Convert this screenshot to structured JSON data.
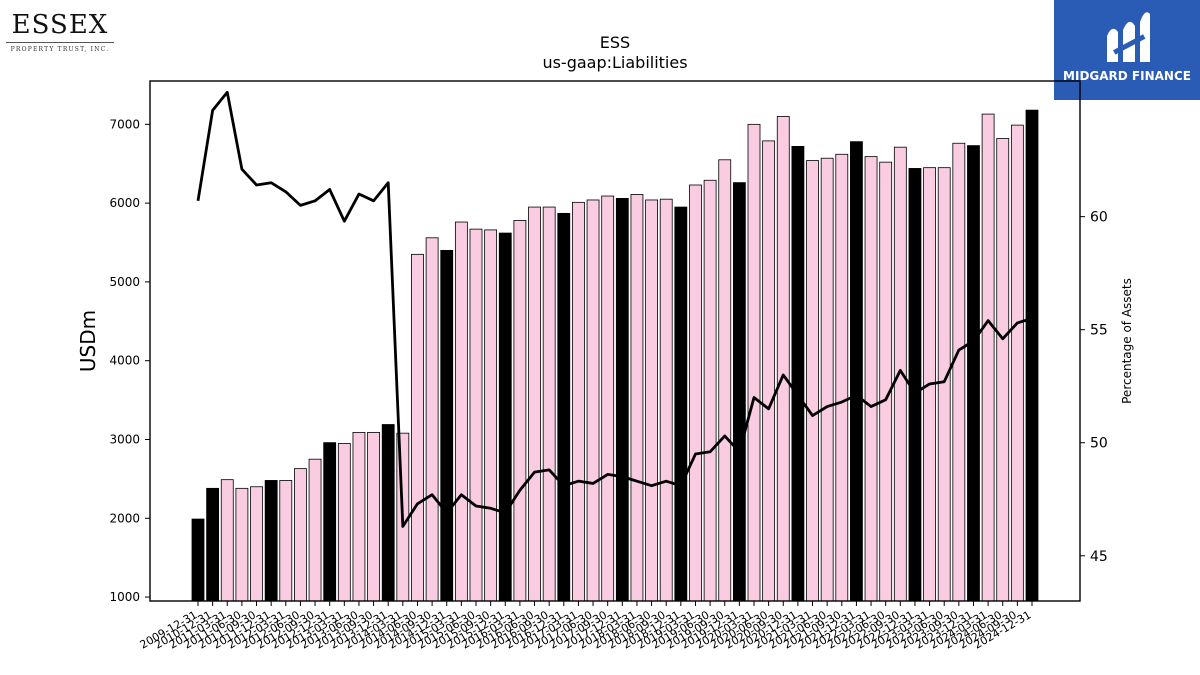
{
  "logos": {
    "essex": {
      "name": "ESSEX",
      "subtitle": "PROPERTY TRUST, INC."
    },
    "midgard": {
      "name": "MIDGARD FINANCE",
      "color": "#2a5bb5"
    }
  },
  "chart_data": {
    "type": "bar",
    "title": "ESS",
    "subtitle": "us-gaap:Liabilities",
    "ylabel": "USDm",
    "y2label": "Percentage of Assets",
    "ylim": [
      950,
      7550
    ],
    "y2lim": [
      43,
      66
    ],
    "yticks": [
      1000,
      2000,
      3000,
      4000,
      5000,
      6000,
      7000
    ],
    "y2ticks": [
      45,
      50,
      55,
      60
    ],
    "categories": [
      "2009-12-31",
      "2010-12-31",
      "2011-03-31",
      "2011-06-30",
      "2011-09-30",
      "2011-12-31",
      "2012-03-31",
      "2012-06-30",
      "2012-09-30",
      "2012-12-31",
      "2013-03-31",
      "2013-06-30",
      "2013-09-30",
      "2013-12-31",
      "2014-03-31",
      "2014-06-30",
      "2014-09-30",
      "2014-12-31",
      "2015-03-31",
      "2015-06-30",
      "2015-09-30",
      "2015-12-31",
      "2016-03-31",
      "2016-06-30",
      "2016-09-30",
      "2016-12-31",
      "2017-03-31",
      "2017-06-30",
      "2017-09-30",
      "2017-12-31",
      "2018-03-31",
      "2018-06-30",
      "2018-09-30",
      "2018-12-31",
      "2019-03-31",
      "2019-06-30",
      "2019-09-30",
      "2019-12-31",
      "2020-03-31",
      "2020-06-30",
      "2020-09-30",
      "2020-12-31",
      "2021-03-31",
      "2021-06-30",
      "2021-09-30",
      "2021-12-31",
      "2022-03-31",
      "2022-06-30",
      "2022-09-30",
      "2022-12-31",
      "2023-03-31",
      "2023-06-30",
      "2023-09-30",
      "2023-12-31",
      "2024-03-31",
      "2024-06-30",
      "2024-09-30",
      "2024-12-31"
    ],
    "tick_labels": [
      "2009-12-31",
      "2010-12-31",
      "2011-03-31",
      "2011-06-30",
      "2011-09-30",
      "2011-12-31",
      "2012-03-31",
      "2012-06-30",
      "2012-09-30",
      "2012-12-31",
      "2013-03-31",
      "2013-06-30",
      "2013-09-30",
      "2013-12-31",
      "2014-03-31",
      "2014-06-30",
      "2014-09-30",
      "2014-12-31",
      "2015-03-31",
      "2015-06-30",
      "2015-09-30",
      "2015-12-31",
      "2016-03-31",
      "2016-06-30",
      "2016-09-30",
      "2016-12-31",
      "2017-03-31",
      "2017-06-30",
      "2017-09-30",
      "2017-12-31",
      "2018-03-31",
      "2018-06-30",
      "2018-09-30",
      "2018-12-31",
      "2019-03-31",
      "2019-06-30",
      "2019-09-30",
      "2019-12-31",
      "2020-03-31",
      "2020-06-30",
      "2020-09-30",
      "2020-12-31",
      "2021-03-31",
      "2021-06-30",
      "2021-09-30",
      "2021-12-31",
      "2022-03-31",
      "2022-06-30",
      "2022-09-30",
      "2022-12-31",
      "2023-03-31",
      "2023-06-30",
      "2023-09-30",
      "2023-12-31",
      "2024-03-31",
      "2024-06-30",
      "2024-09-30",
      "2024-12-31"
    ],
    "series": [
      {
        "type": "bar",
        "values": [
          1990,
          2380,
          2490,
          2380,
          2400,
          2480,
          2480,
          2630,
          2750,
          2960,
          2950,
          3090,
          3090,
          3190,
          3080,
          5350,
          5560,
          5400,
          5760,
          5670,
          5660,
          5620,
          5780,
          5950,
          5950,
          5870,
          6010,
          6040,
          6090,
          6060,
          6110,
          6040,
          6050,
          5950,
          6230,
          6290,
          6550,
          6260,
          7000,
          6790,
          7100,
          6720,
          6540,
          6570,
          6620,
          6780,
          6590,
          6520,
          6710,
          6440,
          6450,
          6450,
          6760,
          6730,
          7130,
          6820,
          6990,
          7180
        ],
        "annual": [
          true,
          true,
          false,
          false,
          false,
          true,
          false,
          false,
          false,
          true,
          false,
          false,
          false,
          true,
          false,
          false,
          false,
          true,
          false,
          false,
          false,
          true,
          false,
          false,
          false,
          true,
          false,
          false,
          false,
          true,
          false,
          false,
          false,
          true,
          false,
          false,
          false,
          true,
          false,
          false,
          false,
          true,
          false,
          false,
          false,
          true,
          false,
          false,
          false,
          true,
          false,
          false,
          false,
          true,
          false,
          false,
          false,
          true
        ],
        "colors": {
          "annual": "#000000",
          "quarterly": "#f9cce2"
        }
      },
      {
        "type": "line",
        "axis": "right",
        "color": "#000000",
        "values": [
          60.7,
          64.7,
          65.5,
          62.1,
          61.4,
          61.5,
          61.1,
          60.5,
          60.7,
          61.2,
          59.8,
          61.0,
          60.7,
          61.5,
          46.3,
          47.3,
          47.7,
          46.9,
          47.7,
          47.2,
          47.1,
          46.9,
          47.9,
          48.7,
          48.8,
          48.1,
          48.3,
          48.2,
          48.6,
          48.5,
          48.3,
          48.1,
          48.3,
          48.1,
          49.5,
          49.6,
          50.3,
          49.6,
          52.0,
          51.5,
          53.0,
          52.1,
          51.2,
          51.6,
          51.8,
          52.1,
          51.6,
          51.9,
          53.2,
          52.2,
          52.6,
          52.7,
          54.1,
          54.5,
          55.4,
          54.6,
          55.3,
          55.5
        ]
      }
    ],
    "grid": false,
    "legend": "none"
  }
}
